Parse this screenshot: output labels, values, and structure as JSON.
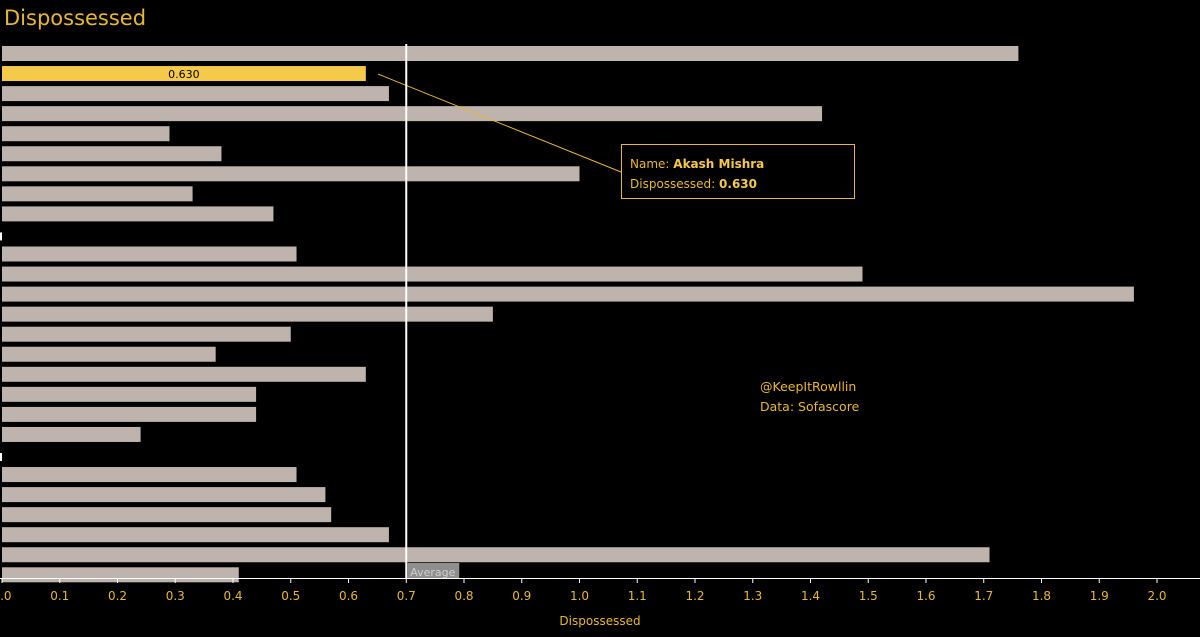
{
  "header": {
    "title": "Dispossessed"
  },
  "tooltip": {
    "name_label": "Name:",
    "name_value": "Akash Mishra",
    "metric_label": "Dispossessed:",
    "metric_value": "0.630"
  },
  "credits": {
    "handle": "@KeepItRowllin",
    "source": "Data: Sofascore"
  },
  "colors": {
    "bar": "#bfb3ad",
    "highlight": "#f5c94a",
    "accent": "#e8b830",
    "background": "#000000",
    "average_line": "#ffffff"
  },
  "chart_data": {
    "type": "bar",
    "orientation": "horizontal",
    "title": "Dispossessed",
    "xlabel": "Dispossessed",
    "ylabel": "",
    "xlim": [
      0,
      2.0
    ],
    "xticks": [
      "0.0",
      "0.1",
      "0.2",
      "0.3",
      "0.4",
      "0.5",
      "0.6",
      "0.7",
      "0.8",
      "0.9",
      "1.0",
      "1.1",
      "1.2",
      "1.3",
      "1.4",
      "1.5",
      "1.6",
      "1.7",
      "1.8",
      "1.9",
      "2.0"
    ],
    "values": [
      1.76,
      0.63,
      0.67,
      1.42,
      0.29,
      0.38,
      1.0,
      0.33,
      0.47,
      null,
      0.51,
      1.49,
      1.96,
      0.85,
      0.5,
      0.37,
      0.63,
      0.44,
      0.44,
      0.24,
      null,
      0.51,
      0.56,
      0.57,
      0.67,
      1.71,
      0.41
    ],
    "highlighted_index": 1,
    "highlighted_label": "0.630",
    "reference_line": {
      "value": 0.7,
      "label": "Average"
    },
    "grid": false
  }
}
